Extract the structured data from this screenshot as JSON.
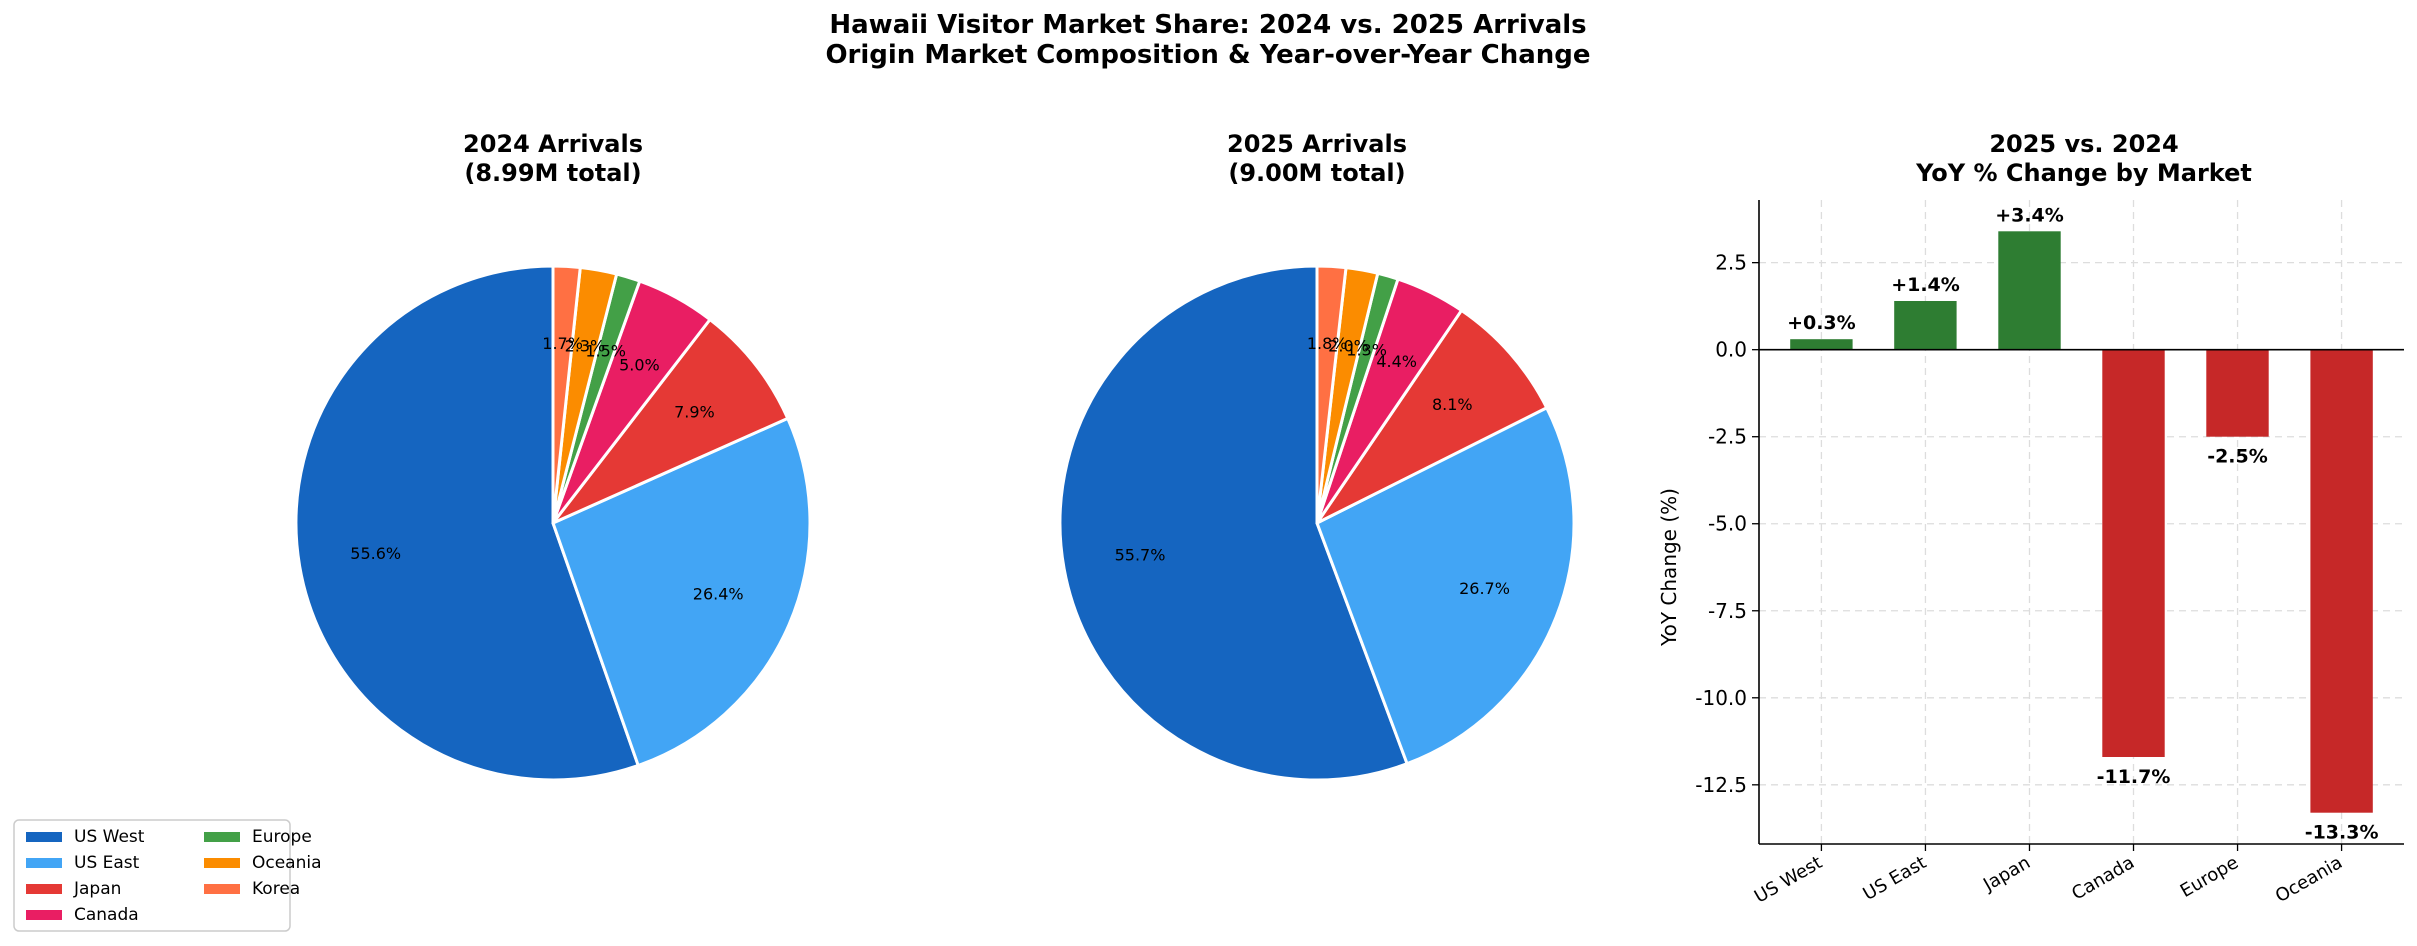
{
  "title": {
    "line1": "Hawaii Visitor Market Share: 2024 vs. 2025 Arrivals",
    "line2": "Origin Market Composition & Year-over-Year Change"
  },
  "colors": {
    "US West": "#1565c0",
    "US East": "#42a5f5",
    "Japan": "#e53935",
    "Canada": "#e91e63",
    "Europe": "#43a047",
    "Oceania": "#fb8c00",
    "Korea": "#ff7043",
    "positive_bar": "#2e7d32",
    "negative_bar": "#c62828"
  },
  "legend": {
    "entries": [
      "US West",
      "US East",
      "Japan",
      "Canada",
      "Europe",
      "Oceania",
      "Korea"
    ],
    "placement": "lower-left"
  },
  "chart_data": [
    {
      "type": "pie",
      "title_line1": "2024 Arrivals",
      "title_line2": "(8.99M total)",
      "start_angle": 90,
      "direction": "counterclockwise",
      "labels": [
        "US West",
        "US East",
        "Japan",
        "Canada",
        "Europe",
        "Oceania",
        "Korea"
      ],
      "values": [
        55.6,
        26.4,
        7.9,
        5.0,
        1.5,
        2.3,
        1.7
      ],
      "value_labels": [
        "55.6%",
        "26.4%",
        "7.9%",
        "5.0%",
        "1.5%",
        "2.3%",
        "1.7%"
      ]
    },
    {
      "type": "pie",
      "title_line1": "2025 Arrivals",
      "title_line2": "(9.00M total)",
      "start_angle": 90,
      "direction": "counterclockwise",
      "labels": [
        "US West",
        "US East",
        "Japan",
        "Canada",
        "Europe",
        "Oceania",
        "Korea"
      ],
      "values": [
        55.7,
        26.7,
        8.1,
        4.4,
        1.3,
        2.0,
        1.8
      ],
      "value_labels": [
        "55.7%",
        "26.7%",
        "8.1%",
        "4.4%",
        "1.3%",
        "2.0%",
        "1.8%"
      ]
    },
    {
      "type": "bar",
      "title_line1": "2025 vs. 2024",
      "title_line2": "YoY % Change by Market",
      "categories": [
        "US West",
        "US East",
        "Japan",
        "Canada",
        "Europe",
        "Oceania"
      ],
      "values": [
        0.3,
        1.4,
        3.4,
        -11.7,
        -2.5,
        -13.3
      ],
      "value_labels": [
        "+0.3%",
        "+1.4%",
        "+3.4%",
        "-11.7%",
        "-2.5%",
        "-13.3%"
      ],
      "ylabel": "YoY Change (%)",
      "xlabel": "",
      "ylim": [
        -14.2,
        4.3
      ],
      "yticks": [
        2.5,
        0.0,
        -2.5,
        -5.0,
        -7.5,
        -10.0,
        -12.5
      ],
      "ytick_labels": [
        "2.5",
        "0.0",
        "-2.5",
        "-5.0",
        "-7.5",
        "-10.0",
        "-12.5"
      ],
      "grid": true
    }
  ]
}
